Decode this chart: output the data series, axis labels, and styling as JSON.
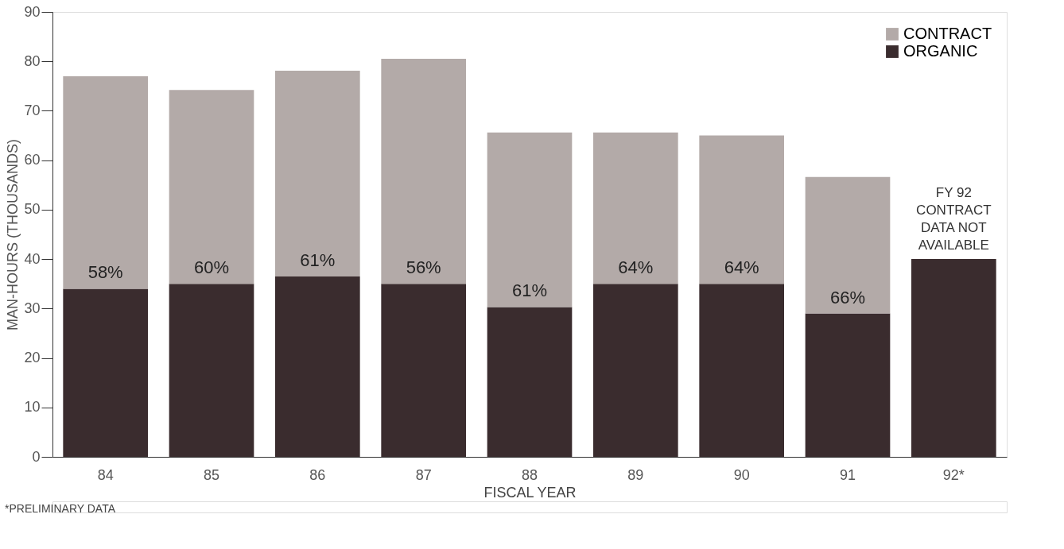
{
  "chart_data": {
    "type": "bar",
    "stacked": true,
    "xlabel": "FISCAL YEAR",
    "ylabel": "MAN-HOURS (THOUSANDS)",
    "categories": [
      "84",
      "85",
      "86",
      "87",
      "88",
      "89",
      "90",
      "91",
      "92*"
    ],
    "series": [
      {
        "name": "ORGANIC",
        "color": "#3a2c2e",
        "values": [
          34,
          35,
          36.5,
          35,
          30.3,
          35,
          35,
          29,
          40
        ]
      },
      {
        "name": "CONTRACT",
        "color": "#b3aaa8",
        "values": [
          43,
          39.2,
          41.6,
          45.5,
          35.3,
          30.6,
          30,
          27.6,
          null
        ]
      }
    ],
    "ylim": [
      0,
      90
    ],
    "yticks": [
      0,
      10,
      20,
      30,
      40,
      50,
      60,
      70,
      80,
      90
    ],
    "grid": false,
    "legend": "top right",
    "annotations": [
      "58%",
      "60%",
      "61%",
      "56%",
      "61%",
      "64%",
      "64%",
      "66%",
      "FY 92\nCONTRACT\nDATA NOT\nAVAILABLE",
      "*PRELIMINARY DATA"
    ]
  }
}
